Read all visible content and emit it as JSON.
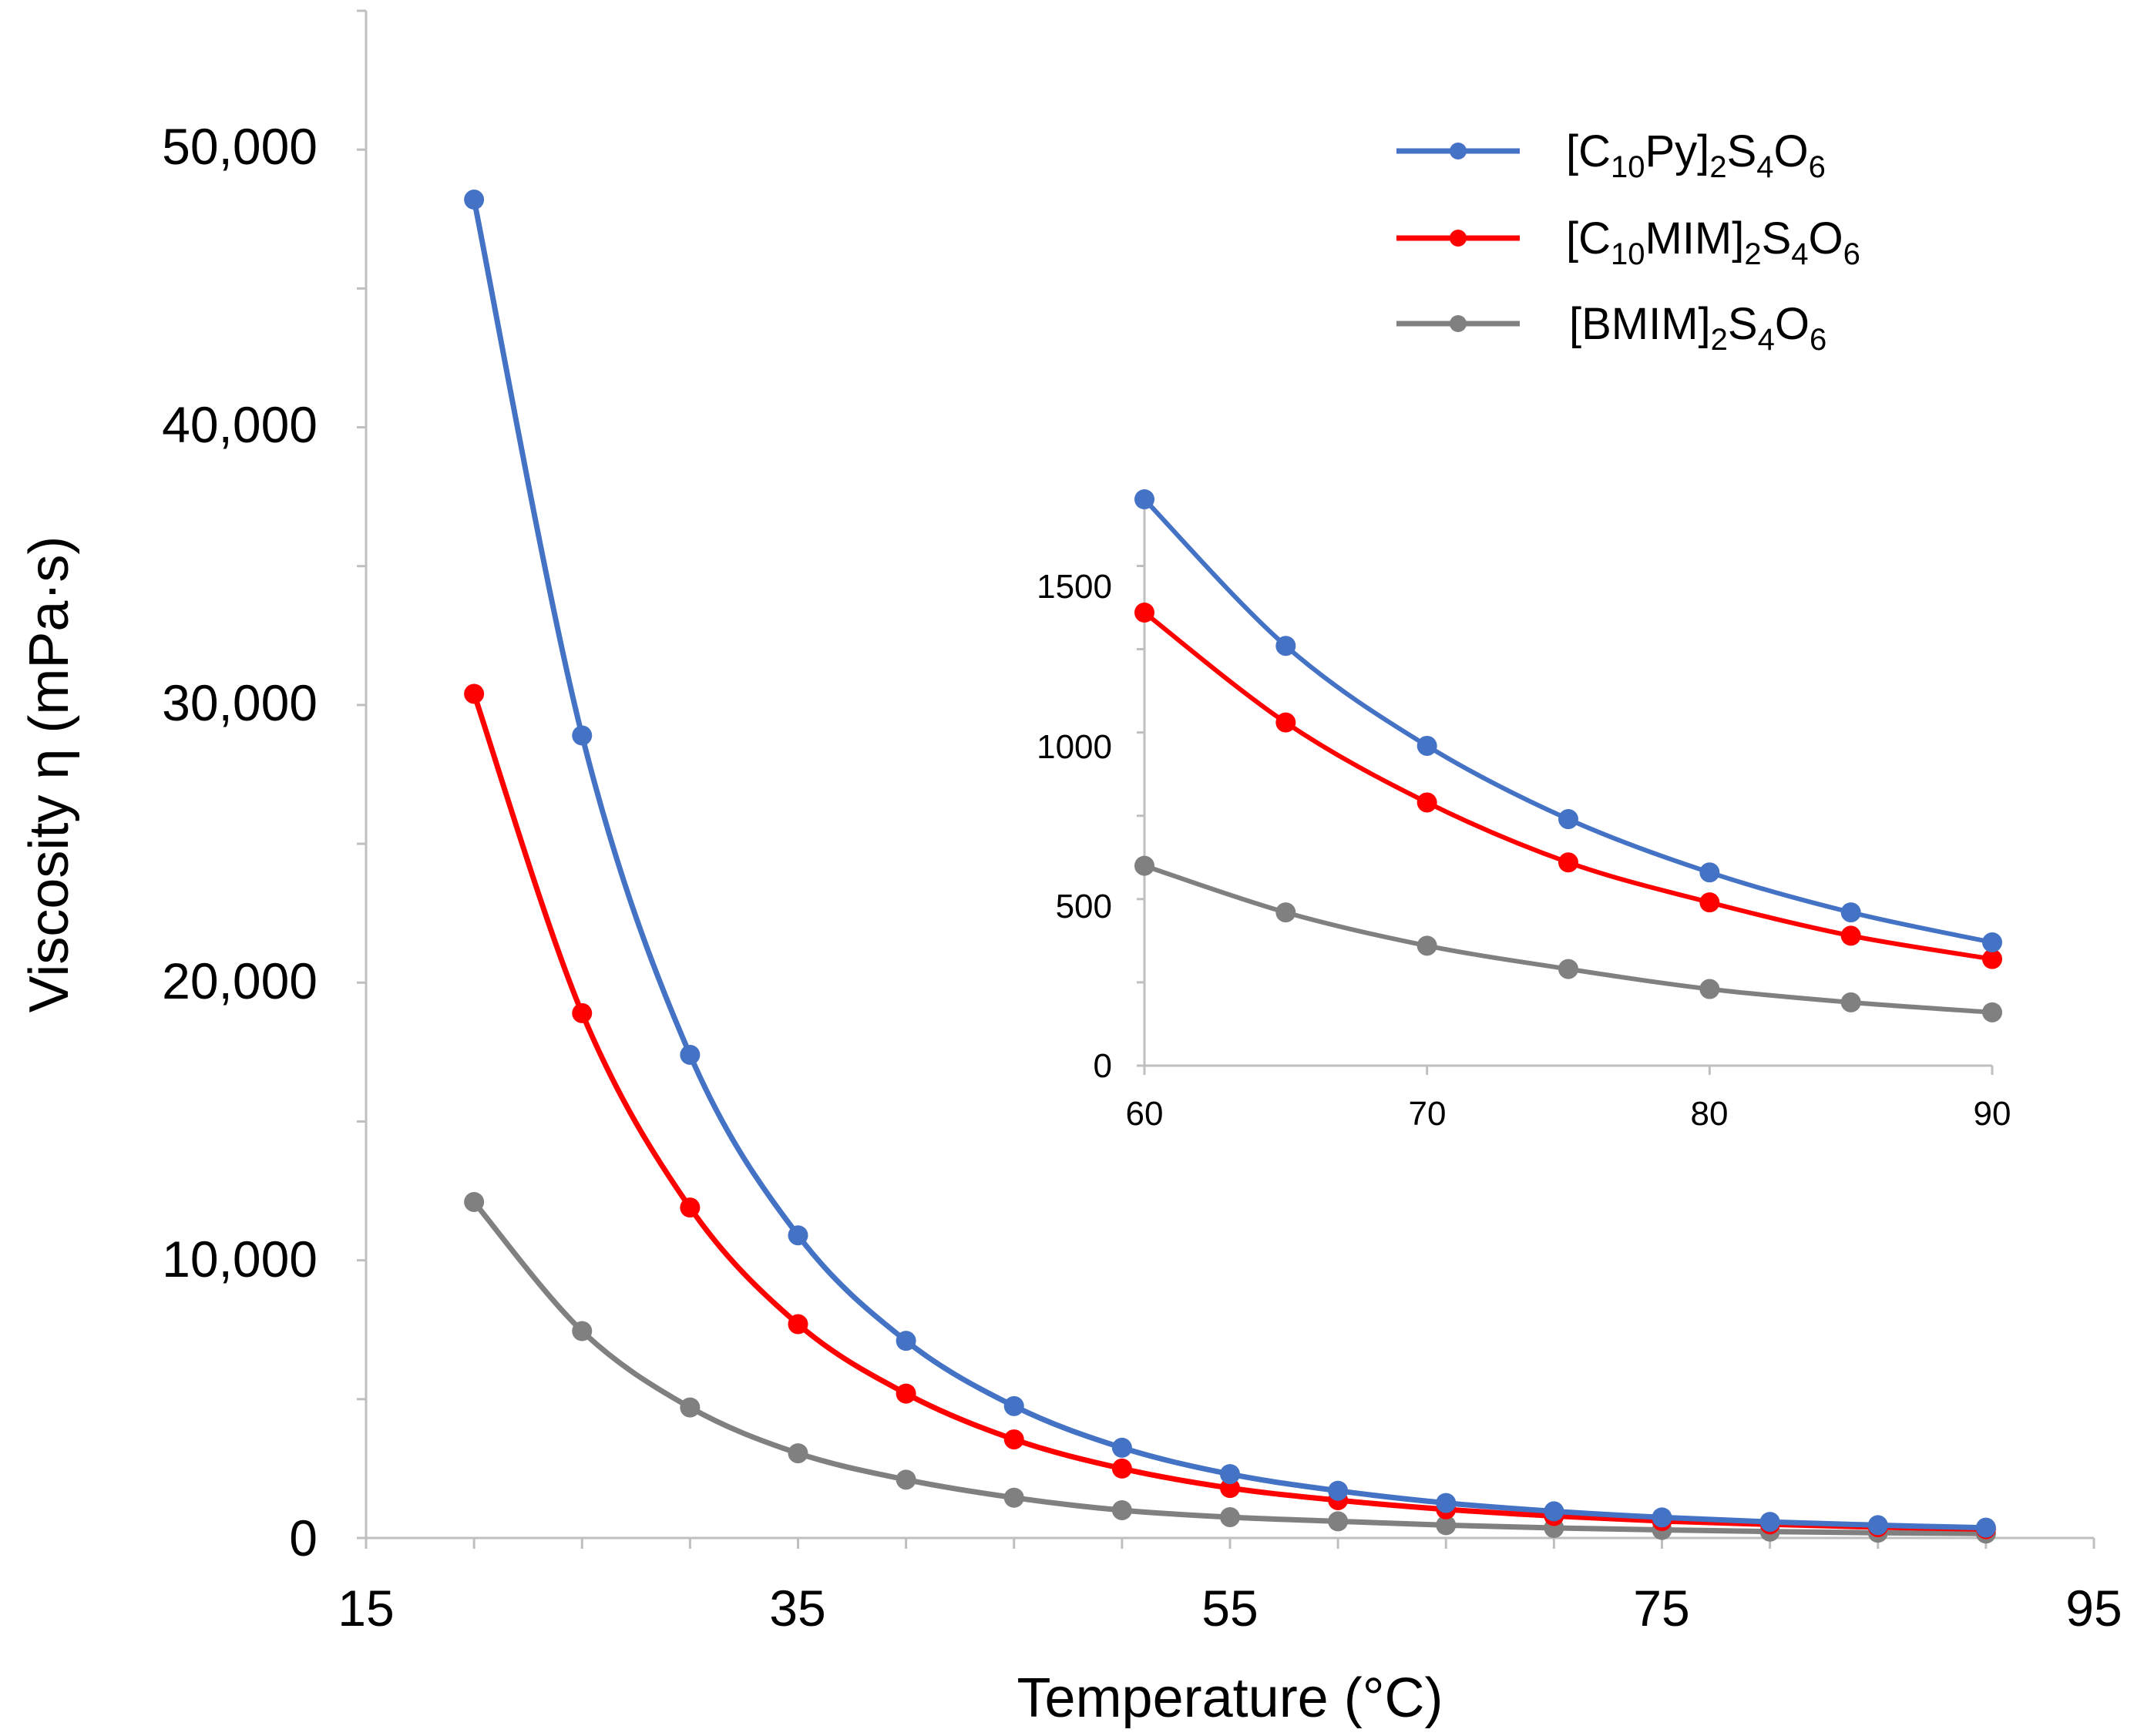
{
  "chart_data": [
    {
      "id": "main",
      "type": "line",
      "title": "",
      "xlabel": "Temperature (°C)",
      "ylabel": "Viscosity η (mPa·s)",
      "xlim": [
        15,
        95
      ],
      "ylim": [
        0,
        55000
      ],
      "x_ticks": [
        15,
        35,
        55,
        75,
        95
      ],
      "x_tick_labels": [
        "15",
        "35",
        "55",
        "75",
        "95"
      ],
      "y_ticks": [
        0,
        10000,
        20000,
        30000,
        40000,
        50000
      ],
      "y_tick_labels": [
        "0",
        "10,000",
        "20,000",
        "30,000",
        "40,000",
        "50,000"
      ],
      "grid": false,
      "legend_position": "top-right",
      "x": [
        20,
        25,
        30,
        35,
        40,
        45,
        50,
        55,
        60,
        65,
        70,
        75,
        80,
        85,
        90
      ],
      "series": [
        {
          "name": "[C10Py]2S4O6",
          "label_base": "[C",
          "label_sub1": "10",
          "label_mid1": "Py]",
          "label_sub2": "2",
          "label_mid2": "S",
          "label_sub3": "4",
          "label_mid3": "O",
          "label_sub4": "6",
          "color": "#4472c4",
          "values": [
            48200,
            28900,
            17400,
            10900,
            7100,
            4750,
            3250,
            2300,
            1700,
            1260,
            960,
            740,
            580,
            460,
            370
          ]
        },
        {
          "name": "[C10MIM]2S4O6",
          "label_base": "[C",
          "label_sub1": "10",
          "label_mid1": "MIM]",
          "label_sub2": "2",
          "label_mid2": "S",
          "label_sub3": "4",
          "label_mid3": "O",
          "label_sub4": "6",
          "color": "#ff0000",
          "values": [
            30400,
            18900,
            11900,
            7700,
            5200,
            3550,
            2500,
            1800,
            1360,
            1030,
            790,
            610,
            490,
            390,
            320
          ]
        },
        {
          "name": "[BMIM]2S4O6",
          "label_base": "[BMIM]",
          "label_sub1": "2",
          "label_mid1": "S",
          "label_sub2": "4",
          "label_mid2": "O",
          "label_sub3": "6",
          "label_mid3": "",
          "label_sub4": "",
          "color": "#808080",
          "values": [
            12100,
            7450,
            4700,
            3050,
            2100,
            1450,
            1000,
            750,
            600,
            460,
            360,
            290,
            230,
            190,
            160
          ]
        }
      ]
    },
    {
      "id": "inset",
      "type": "line",
      "title": "",
      "xlabel": "",
      "ylabel": "",
      "xlim": [
        60,
        90
      ],
      "ylim": [
        0,
        1700
      ],
      "x_ticks": [
        60,
        70,
        80,
        90
      ],
      "x_tick_labels": [
        "60",
        "70",
        "80",
        "90"
      ],
      "y_ticks": [
        0,
        500,
        1000,
        1500
      ],
      "y_tick_labels": [
        "0",
        "500",
        "1000",
        "1500"
      ],
      "grid": false,
      "x": [
        60,
        65,
        70,
        75,
        80,
        85,
        90
      ],
      "series": [
        {
          "name": "[C10Py]2S4O6",
          "color": "#4472c4",
          "values": [
            1700,
            1260,
            960,
            740,
            580,
            460,
            370
          ]
        },
        {
          "name": "[C10MIM]2S4O6",
          "color": "#ff0000",
          "values": [
            1360,
            1030,
            790,
            610,
            490,
            390,
            320
          ]
        },
        {
          "name": "[BMIM]2S4O6",
          "color": "#808080",
          "values": [
            600,
            460,
            360,
            290,
            230,
            190,
            160
          ]
        }
      ]
    }
  ]
}
